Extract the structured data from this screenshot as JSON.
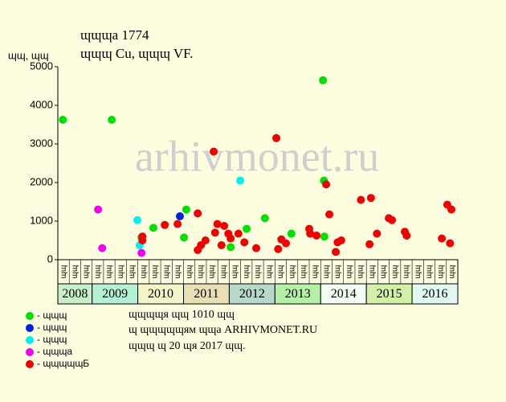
{
  "chart_data": {
    "type": "scatter",
    "title": "ɰɰɰа 1774",
    "subtitle": "ɰɰɰ Cu, ɰɰɰ VF.",
    "y_label": "ɰɰ, ɰɰ",
    "watermark": "arhivmonet.ru",
    "xlim": [
      2008.25,
      2017
    ],
    "ylim": [
      0,
      5000
    ],
    "yticks": [
      0,
      1000,
      2000,
      3000,
      4000,
      5000
    ],
    "year_labels": [
      "2008",
      "2009",
      "2010",
      "2011",
      "2012",
      "2013",
      "2014",
      "2015",
      "2016"
    ],
    "year_colors": [
      "#c8f0c8",
      "#b4f0d4",
      "#f4f4c8",
      "#e8e0b4",
      "#b8d8cc",
      "#b4f0a8",
      "#f4fff4",
      "#d4f0a8",
      "#e0f8f0"
    ],
    "quarter_labels": [
      "ɰɰ",
      "ɰɰ",
      "ɰɰ",
      "ɰɰ",
      "ɰɰ",
      "ɰɰ",
      "ɰɰ",
      "ɰɰ",
      "ɰɰ",
      "ɰɰ",
      "ɰɰ",
      "ɰɰ",
      "ɰɰ",
      "ɰɰ",
      "ɰɰ",
      "ɰɰ",
      "ɰɰ",
      "ɰɰ",
      "ɰɰ",
      "ɰɰ",
      "ɰɰ",
      "ɰɰ",
      "ɰɰ",
      "ɰɰ",
      "ɰɰ",
      "ɰɰ",
      "ɰɰ",
      "ɰɰ",
      "ɰɰ",
      "ɰɰ",
      "ɰɰ",
      "ɰɰ",
      "ɰɰ",
      "ɰɰ",
      "ɰɰ"
    ],
    "series": [
      {
        "name": "- ɰɰɰ",
        "color": "#00e000",
        "x": [
          2008.36,
          2009.43,
          2010.08,
          2010.34,
          2011.01,
          2011.06,
          2012.03,
          2012.38,
          2012.78,
          2013.36,
          2014.05,
          2014.07,
          2014.08
        ],
        "values": [
          3625,
          3625,
          575,
          825,
          575,
          1300,
          325,
          800,
          1075,
          675,
          4650,
          2050,
          600
        ]
      },
      {
        "name": "- ɰɰɰ",
        "color": "#0020e0",
        "x": [
          2010.92
        ],
        "values": [
          1125
        ]
      },
      {
        "name": "- ɰɰɰ",
        "color": "#00f0f0",
        "x": [
          2009.99,
          2010.04,
          2012.24
        ],
        "values": [
          1025,
          375,
          2050
        ]
      },
      {
        "name": "- ɰɰɰа",
        "color": "#f000f0",
        "x": [
          2009.13,
          2009.22,
          2010.08
        ],
        "values": [
          1300,
          300,
          175
        ]
      },
      {
        "name": "- ɰɰɰɰɰБ",
        "color": "#f00000",
        "x": [
          2010.1,
          2010.1,
          2010.59,
          2010.87,
          2011.31,
          2011.31,
          2011.38,
          2011.48,
          2011.66,
          2011.69,
          2011.74,
          2011.83,
          2011.89,
          2011.98,
          2012.03,
          2012.2,
          2012.33,
          2012.59,
          2013.03,
          2013.07,
          2013.14,
          2013.24,
          2013.75,
          2013.77,
          2013.91,
          2014.12,
          2014.19,
          2014.33,
          2014.37,
          2014.45,
          2014.88,
          2015.07,
          2015.1,
          2015.23,
          2015.49,
          2015.56,
          2015.84,
          2015.88,
          2016.65,
          2016.77,
          2016.83,
          2016.86
        ],
        "values": [
          600,
          500,
          900,
          925,
          1200,
          250,
          375,
          500,
          2800,
          700,
          925,
          375,
          875,
          675,
          550,
          675,
          450,
          300,
          3150,
          275,
          525,
          425,
          800,
          675,
          625,
          1950,
          1175,
          200,
          450,
          500,
          1550,
          400,
          1600,
          675,
          1075,
          1025,
          725,
          625,
          550,
          1425,
          425,
          1300
        ]
      }
    ],
    "notes": [
      "ɰɰɰɰя ɰɰ 1010 ɰɰ",
      "ɰ ɰɰɰɰɰям ɰɰа ARHIVMONET.RU",
      "ɰɰɰ ɰ 20 ɰя 2017 ɰɰ."
    ]
  }
}
